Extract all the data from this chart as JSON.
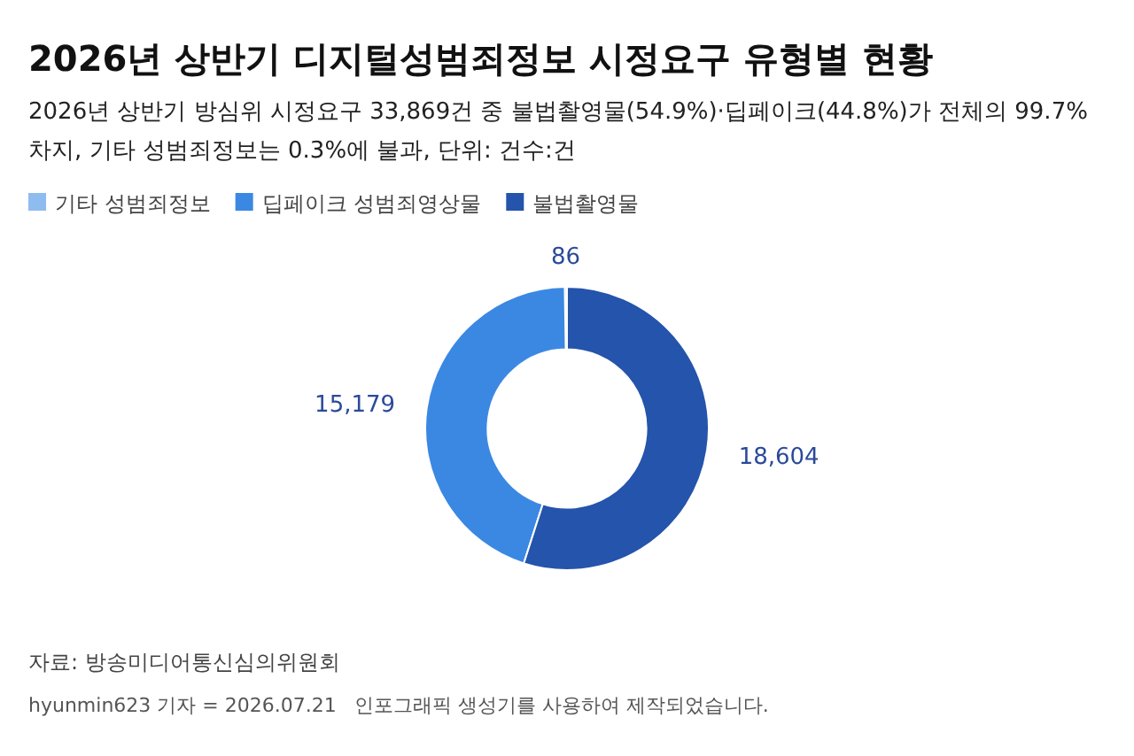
{
  "chart_data": {
    "type": "donut",
    "title": "2026년 상반기 디지털성범죄정보 시정요구 유형별 현황",
    "subtitle": "2026년 상반기 방심위 시정요구 33,869건 중 불법촬영물(54.9%)·딥페이크(44.8%)가 전체의 99.7% 차지, 기타 성범죄정보는 0.3%에 불과, 단위: 건수:건",
    "categories": [
      "기타 성범죄정보",
      "딥페이크 성범죄영상물",
      "불법촬영물"
    ],
    "values": [
      86,
      15179,
      18604
    ],
    "colors": [
      "#8fbcee",
      "#3b88e3",
      "#2454ab"
    ],
    "value_labels": [
      "86",
      "15,179",
      "18,604"
    ],
    "legend": "top left",
    "annotations": [
      "자료: 방송미디어통신심의위원회",
      "hyunmin623 기자 = 2026.07.21",
      "인포그래픽 생성기를 사용하여 제작되었습니다."
    ]
  }
}
